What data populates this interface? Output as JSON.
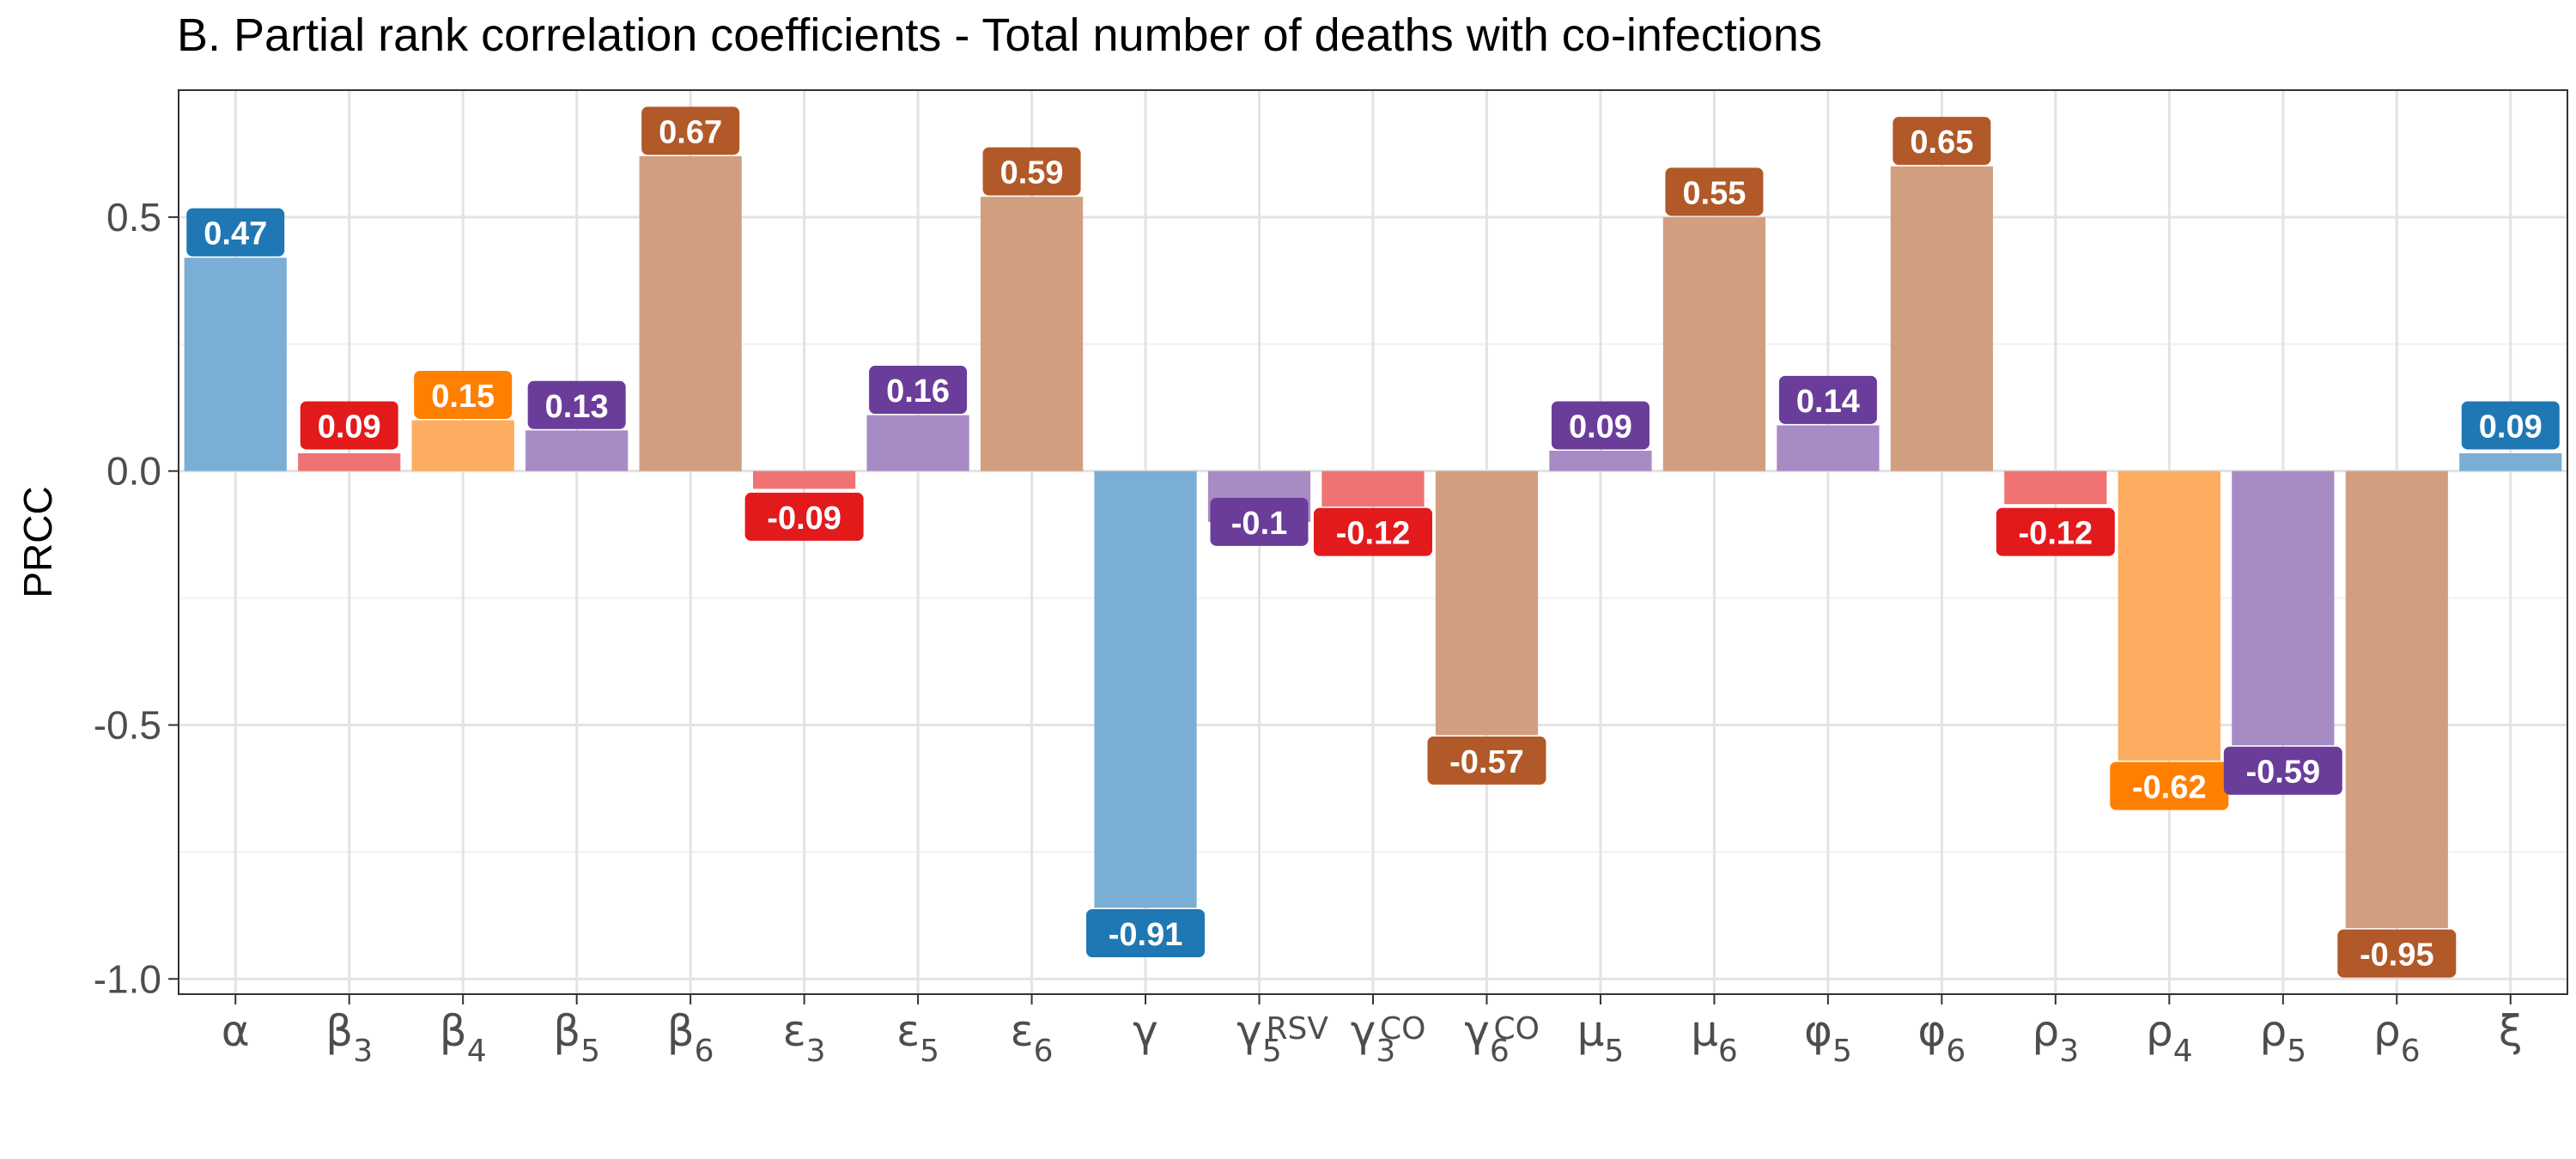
{
  "chart_data": {
    "type": "bar",
    "title": "B. Partial rank correlation coefficients - Total number of deaths with co-infections",
    "xlabel": "",
    "ylabel": "PRCC",
    "ylim": [
      -1.03,
      0.75
    ],
    "yticks": [
      "0.5",
      "0.0",
      "-0.5",
      "-1.0"
    ],
    "ytick_values": [
      0.5,
      0.0,
      -0.5,
      -1.0
    ],
    "grid": true,
    "legend": "none",
    "categories": [
      {
        "base": "α",
        "sub": "",
        "sup": ""
      },
      {
        "base": "β",
        "sub": "3",
        "sup": ""
      },
      {
        "base": "β",
        "sub": "4",
        "sup": ""
      },
      {
        "base": "β",
        "sub": "5",
        "sup": ""
      },
      {
        "base": "β",
        "sub": "6",
        "sup": ""
      },
      {
        "base": "ε",
        "sub": "3",
        "sup": ""
      },
      {
        "base": "ε",
        "sub": "5",
        "sup": ""
      },
      {
        "base": "ε",
        "sub": "6",
        "sup": ""
      },
      {
        "base": "γ",
        "sub": "",
        "sup": ""
      },
      {
        "base": "γ",
        "sub": "5",
        "sup": "RSV"
      },
      {
        "base": "γ",
        "sub": "3",
        "sup": "CO"
      },
      {
        "base": "γ",
        "sub": "6",
        "sup": "CO"
      },
      {
        "base": "μ",
        "sub": "5",
        "sup": ""
      },
      {
        "base": "μ",
        "sub": "6",
        "sup": ""
      },
      {
        "base": "φ",
        "sub": "5",
        "sup": ""
      },
      {
        "base": "φ",
        "sub": "6",
        "sup": ""
      },
      {
        "base": "ρ",
        "sub": "3",
        "sup": ""
      },
      {
        "base": "ρ",
        "sub": "4",
        "sup": ""
      },
      {
        "base": "ρ",
        "sub": "5",
        "sup": ""
      },
      {
        "base": "ρ",
        "sub": "6",
        "sup": ""
      },
      {
        "base": "ξ",
        "sub": "",
        "sup": ""
      }
    ],
    "values": [
      0.47,
      0.09,
      0.15,
      0.13,
      0.67,
      -0.09,
      0.16,
      0.59,
      -0.91,
      -0.1,
      -0.12,
      -0.57,
      0.09,
      0.55,
      0.14,
      0.65,
      -0.12,
      -0.62,
      -0.59,
      -0.95,
      0.09
    ],
    "labels": [
      "0.47",
      "0.09",
      "0.15",
      "0.13",
      "0.67",
      "-0.09",
      "0.16",
      "0.59",
      "-0.91",
      "-0.1",
      "-0.12",
      "-0.57",
      "0.09",
      "0.55",
      "0.14",
      "0.65",
      "-0.12",
      "-0.62",
      "-0.59",
      "-0.95",
      "0.09"
    ],
    "bar_heights": [
      0.42,
      0.035,
      0.1,
      0.08,
      0.62,
      -0.035,
      0.11,
      0.54,
      -0.86,
      -0.1,
      -0.07,
      -0.52,
      0.04,
      0.5,
      0.09,
      0.6,
      -0.065,
      -0.57,
      -0.54,
      -0.9,
      0.035
    ],
    "groups": [
      "blue",
      "red",
      "orange",
      "purple",
      "brown",
      "red",
      "purple",
      "brown",
      "blue",
      "purple",
      "red",
      "brown",
      "purple",
      "brown",
      "purple",
      "brown",
      "red",
      "orange",
      "purple",
      "brown",
      "blue"
    ],
    "colors": {
      "blue": {
        "bar": "#7aaed4",
        "label": "#1f78b4"
      },
      "red": {
        "bar": "#ef7373",
        "label": "#e31a1c"
      },
      "orange": {
        "bar": "#fdad5f",
        "label": "#ff7f00"
      },
      "purple": {
        "bar": "#a68bc4",
        "label": "#6a3d9a"
      },
      "brown": {
        "bar": "#d19f80",
        "label": "#b15928"
      }
    }
  }
}
